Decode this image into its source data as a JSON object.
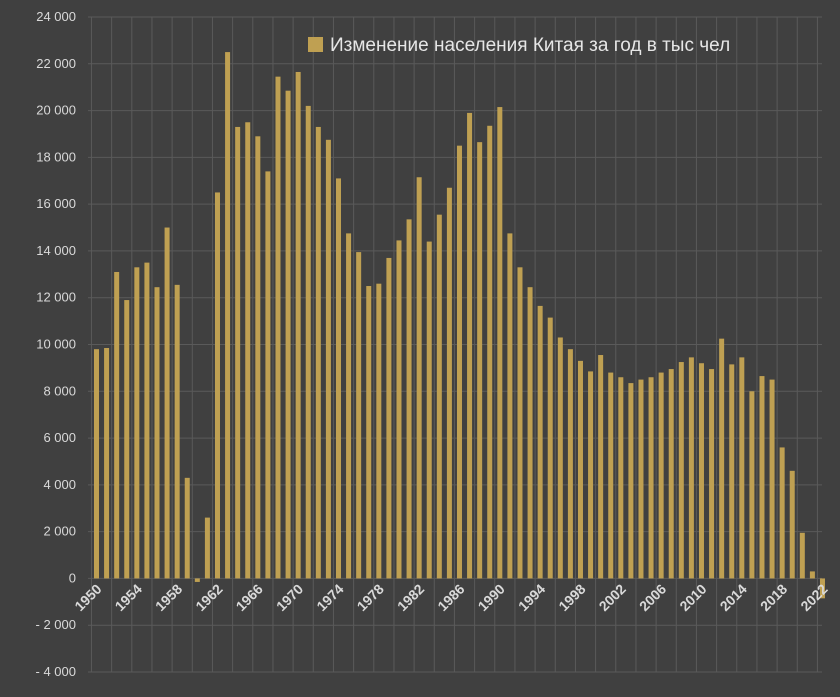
{
  "chart_data": {
    "type": "bar",
    "legend": {
      "label": "Изменение населения Китая за год в тыс чел",
      "position": "top-right"
    },
    "colors": {
      "background": "#404040",
      "bar": "#bfa052",
      "grid": "#5a5a5a",
      "text": "#d9d9d9"
    },
    "grid": true,
    "ylim": [
      -4000,
      24000
    ],
    "yticks": [
      24000,
      22000,
      20000,
      18000,
      16000,
      14000,
      12000,
      10000,
      8000,
      6000,
      4000,
      2000,
      0,
      -2000,
      -4000
    ],
    "ytick_labels": [
      "24 000",
      "22 000",
      "20 000",
      "18 000",
      "16 000",
      "14 000",
      "12 000",
      "10 000",
      "8 000",
      "6 000",
      "4 000",
      "2 000",
      "0",
      "- 2 000",
      "- 4 000"
    ],
    "xtick_labels": [
      "1950",
      "1954",
      "1958",
      "1962",
      "1966",
      "1970",
      "1974",
      "1978",
      "1982",
      "1986",
      "1990",
      "1994",
      "1998",
      "2002",
      "2006",
      "2010",
      "2014",
      "2018",
      "2022"
    ],
    "x": [
      1950,
      1951,
      1952,
      1953,
      1954,
      1955,
      1956,
      1957,
      1958,
      1959,
      1960,
      1961,
      1962,
      1963,
      1964,
      1965,
      1966,
      1967,
      1968,
      1969,
      1970,
      1971,
      1972,
      1973,
      1974,
      1975,
      1976,
      1977,
      1978,
      1979,
      1980,
      1981,
      1982,
      1983,
      1984,
      1985,
      1986,
      1987,
      1988,
      1989,
      1990,
      1991,
      1992,
      1993,
      1994,
      1995,
      1996,
      1997,
      1998,
      1999,
      2000,
      2001,
      2002,
      2003,
      2004,
      2005,
      2006,
      2007,
      2008,
      2009,
      2010,
      2011,
      2012,
      2013,
      2014,
      2015,
      2016,
      2017,
      2018,
      2019,
      2020,
      2021,
      2022
    ],
    "values": [
      9800,
      9850,
      13100,
      11900,
      13300,
      13500,
      12450,
      15000,
      12550,
      4300,
      -150,
      2600,
      16500,
      22500,
      19300,
      19500,
      18900,
      17400,
      21450,
      20850,
      21650,
      20200,
      19300,
      18750,
      17100,
      14750,
      13950,
      12500,
      12600,
      13700,
      14450,
      15350,
      17150,
      14400,
      15550,
      16700,
      18500,
      19900,
      18650,
      19350,
      20150,
      14750,
      13300,
      12450,
      11650,
      11150,
      10300,
      9800,
      9300,
      8850,
      9550,
      8800,
      8600,
      8350,
      8500,
      8600,
      8800,
      8950,
      9250,
      9450,
      9200,
      8950,
      10250,
      9150,
      9450,
      8000,
      8650,
      8500,
      5600,
      4600,
      1950,
      300,
      -850
    ]
  }
}
